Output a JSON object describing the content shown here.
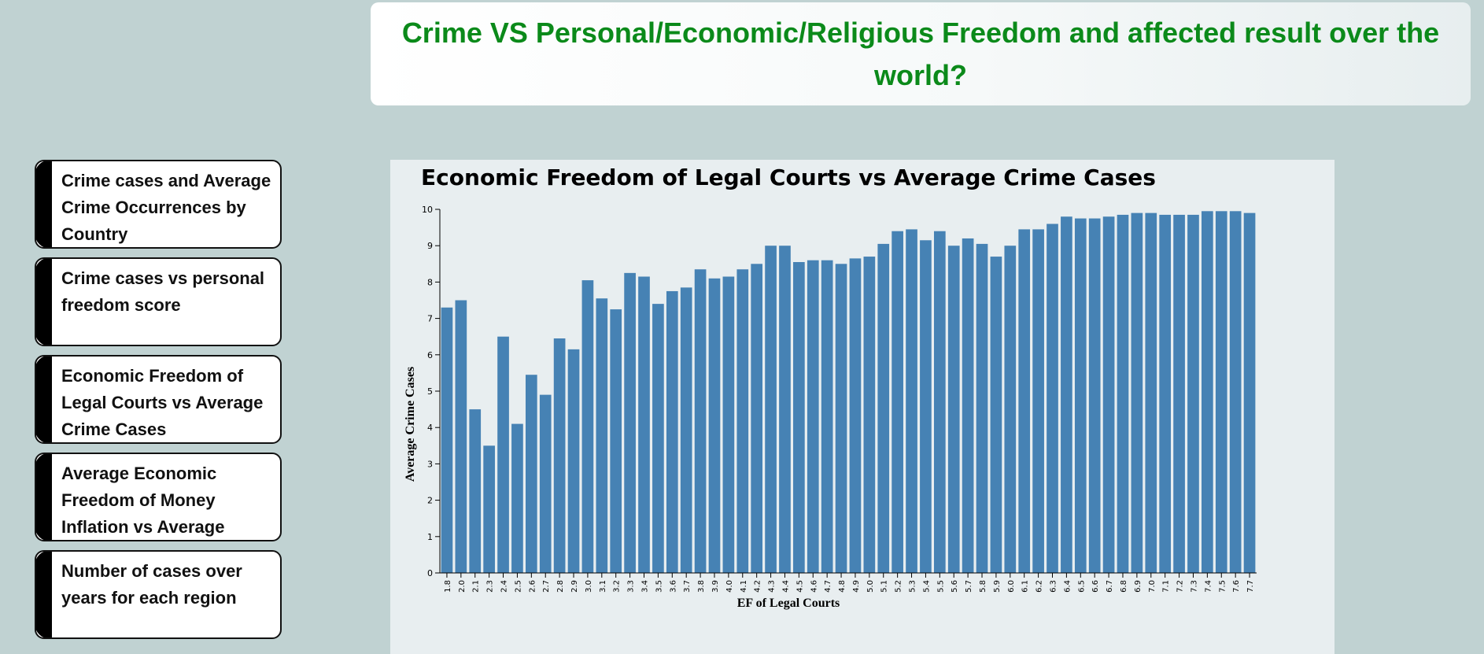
{
  "page": {
    "title": "Crime VS Personal/Economic/Religious Freedom and affected result over the world?"
  },
  "nav": {
    "items": [
      {
        "label": "Crime cases and Average Crime Occurrences by Country"
      },
      {
        "label": "Crime cases vs personal freedom score"
      },
      {
        "label": "Economic Freedom of Legal Courts vs Average Crime Cases"
      },
      {
        "label": "Average Economic Freedom of Money Inflation vs Average"
      },
      {
        "label": "Number of cases over years for each region"
      }
    ]
  },
  "colors": {
    "background": "#c0d2d2",
    "title": "#0b8a1a",
    "bar": "#4682b4",
    "chart_panel": "#e8eef0"
  },
  "chart_data": {
    "type": "bar",
    "title": "Economic Freedom of Legal Courts vs Average Crime Cases",
    "xlabel": "EF of Legal Courts",
    "ylabel": "Average Crime Cases",
    "ylim": [
      0,
      10
    ],
    "yticks": [
      0,
      1,
      2,
      3,
      4,
      5,
      6,
      7,
      8,
      9,
      10
    ],
    "grid": false,
    "categories": [
      "1.8",
      "2.0",
      "2.1",
      "2.3",
      "2.4",
      "2.5",
      "2.6",
      "2.7",
      "2.8",
      "2.9",
      "3.0",
      "3.1",
      "3.2",
      "3.3",
      "3.4",
      "3.5",
      "3.6",
      "3.7",
      "3.8",
      "3.9",
      "4.0",
      "4.1",
      "4.2",
      "4.3",
      "4.4",
      "4.5",
      "4.6",
      "4.7",
      "4.8",
      "4.9",
      "5.0",
      "5.1",
      "5.2",
      "5.3",
      "5.4",
      "5.5",
      "5.6",
      "5.7",
      "5.8",
      "5.9",
      "6.0",
      "6.1",
      "6.2",
      "6.3",
      "6.4",
      "6.5",
      "6.6",
      "6.7",
      "6.8",
      "6.9",
      "7.0",
      "7.1",
      "7.2",
      "7.3",
      "7.4",
      "7.5",
      "7.6",
      "7.7"
    ],
    "values": [
      7.3,
      7.5,
      4.5,
      3.5,
      6.5,
      4.1,
      5.45,
      4.9,
      6.45,
      6.15,
      8.05,
      7.55,
      7.25,
      8.25,
      8.15,
      7.4,
      7.75,
      7.85,
      8.35,
      8.1,
      8.15,
      8.35,
      8.5,
      9.0,
      9.0,
      8.55,
      8.6,
      8.6,
      8.5,
      8.65,
      8.7,
      9.05,
      9.4,
      9.45,
      9.15,
      9.4,
      9.0,
      9.2,
      9.05,
      8.7,
      9.0,
      9.45,
      9.45,
      9.6,
      9.8,
      9.75,
      9.75,
      9.8,
      9.85,
      9.9,
      9.9,
      9.85,
      9.85,
      9.85,
      9.95,
      9.95,
      9.95,
      9.9
    ]
  }
}
